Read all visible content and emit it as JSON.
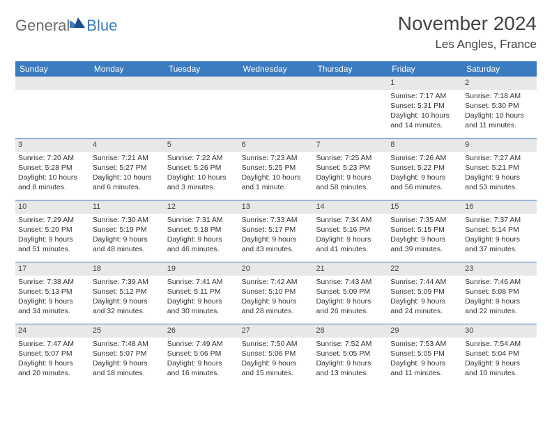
{
  "brand": {
    "part1": "General",
    "part2": "Blue"
  },
  "title": "November 2024",
  "location": "Les Angles, France",
  "weekday_header_bg": "#3b7bbf",
  "weekday_header_fg": "#ffffff",
  "daynum_bg": "#e8e8e8",
  "border_color": "#3b7bbf",
  "text_color": "#333333",
  "weekdays": [
    "Sunday",
    "Monday",
    "Tuesday",
    "Wednesday",
    "Thursday",
    "Friday",
    "Saturday"
  ],
  "weeks": [
    [
      null,
      null,
      null,
      null,
      null,
      {
        "n": "1",
        "sr": "Sunrise: 7:17 AM",
        "ss": "Sunset: 5:31 PM",
        "dl1": "Daylight: 10 hours",
        "dl2": "and 14 minutes."
      },
      {
        "n": "2",
        "sr": "Sunrise: 7:18 AM",
        "ss": "Sunset: 5:30 PM",
        "dl1": "Daylight: 10 hours",
        "dl2": "and 11 minutes."
      }
    ],
    [
      {
        "n": "3",
        "sr": "Sunrise: 7:20 AM",
        "ss": "Sunset: 5:28 PM",
        "dl1": "Daylight: 10 hours",
        "dl2": "and 8 minutes."
      },
      {
        "n": "4",
        "sr": "Sunrise: 7:21 AM",
        "ss": "Sunset: 5:27 PM",
        "dl1": "Daylight: 10 hours",
        "dl2": "and 6 minutes."
      },
      {
        "n": "5",
        "sr": "Sunrise: 7:22 AM",
        "ss": "Sunset: 5:26 PM",
        "dl1": "Daylight: 10 hours",
        "dl2": "and 3 minutes."
      },
      {
        "n": "6",
        "sr": "Sunrise: 7:23 AM",
        "ss": "Sunset: 5:25 PM",
        "dl1": "Daylight: 10 hours",
        "dl2": "and 1 minute."
      },
      {
        "n": "7",
        "sr": "Sunrise: 7:25 AM",
        "ss": "Sunset: 5:23 PM",
        "dl1": "Daylight: 9 hours",
        "dl2": "and 58 minutes."
      },
      {
        "n": "8",
        "sr": "Sunrise: 7:26 AM",
        "ss": "Sunset: 5:22 PM",
        "dl1": "Daylight: 9 hours",
        "dl2": "and 56 minutes."
      },
      {
        "n": "9",
        "sr": "Sunrise: 7:27 AM",
        "ss": "Sunset: 5:21 PM",
        "dl1": "Daylight: 9 hours",
        "dl2": "and 53 minutes."
      }
    ],
    [
      {
        "n": "10",
        "sr": "Sunrise: 7:29 AM",
        "ss": "Sunset: 5:20 PM",
        "dl1": "Daylight: 9 hours",
        "dl2": "and 51 minutes."
      },
      {
        "n": "11",
        "sr": "Sunrise: 7:30 AM",
        "ss": "Sunset: 5:19 PM",
        "dl1": "Daylight: 9 hours",
        "dl2": "and 48 minutes."
      },
      {
        "n": "12",
        "sr": "Sunrise: 7:31 AM",
        "ss": "Sunset: 5:18 PM",
        "dl1": "Daylight: 9 hours",
        "dl2": "and 46 minutes."
      },
      {
        "n": "13",
        "sr": "Sunrise: 7:33 AM",
        "ss": "Sunset: 5:17 PM",
        "dl1": "Daylight: 9 hours",
        "dl2": "and 43 minutes."
      },
      {
        "n": "14",
        "sr": "Sunrise: 7:34 AM",
        "ss": "Sunset: 5:16 PM",
        "dl1": "Daylight: 9 hours",
        "dl2": "and 41 minutes."
      },
      {
        "n": "15",
        "sr": "Sunrise: 7:35 AM",
        "ss": "Sunset: 5:15 PM",
        "dl1": "Daylight: 9 hours",
        "dl2": "and 39 minutes."
      },
      {
        "n": "16",
        "sr": "Sunrise: 7:37 AM",
        "ss": "Sunset: 5:14 PM",
        "dl1": "Daylight: 9 hours",
        "dl2": "and 37 minutes."
      }
    ],
    [
      {
        "n": "17",
        "sr": "Sunrise: 7:38 AM",
        "ss": "Sunset: 5:13 PM",
        "dl1": "Daylight: 9 hours",
        "dl2": "and 34 minutes."
      },
      {
        "n": "18",
        "sr": "Sunrise: 7:39 AM",
        "ss": "Sunset: 5:12 PM",
        "dl1": "Daylight: 9 hours",
        "dl2": "and 32 minutes."
      },
      {
        "n": "19",
        "sr": "Sunrise: 7:41 AM",
        "ss": "Sunset: 5:11 PM",
        "dl1": "Daylight: 9 hours",
        "dl2": "and 30 minutes."
      },
      {
        "n": "20",
        "sr": "Sunrise: 7:42 AM",
        "ss": "Sunset: 5:10 PM",
        "dl1": "Daylight: 9 hours",
        "dl2": "and 28 minutes."
      },
      {
        "n": "21",
        "sr": "Sunrise: 7:43 AM",
        "ss": "Sunset: 5:09 PM",
        "dl1": "Daylight: 9 hours",
        "dl2": "and 26 minutes."
      },
      {
        "n": "22",
        "sr": "Sunrise: 7:44 AM",
        "ss": "Sunset: 5:09 PM",
        "dl1": "Daylight: 9 hours",
        "dl2": "and 24 minutes."
      },
      {
        "n": "23",
        "sr": "Sunrise: 7:46 AM",
        "ss": "Sunset: 5:08 PM",
        "dl1": "Daylight: 9 hours",
        "dl2": "and 22 minutes."
      }
    ],
    [
      {
        "n": "24",
        "sr": "Sunrise: 7:47 AM",
        "ss": "Sunset: 5:07 PM",
        "dl1": "Daylight: 9 hours",
        "dl2": "and 20 minutes."
      },
      {
        "n": "25",
        "sr": "Sunrise: 7:48 AM",
        "ss": "Sunset: 5:07 PM",
        "dl1": "Daylight: 9 hours",
        "dl2": "and 18 minutes."
      },
      {
        "n": "26",
        "sr": "Sunrise: 7:49 AM",
        "ss": "Sunset: 5:06 PM",
        "dl1": "Daylight: 9 hours",
        "dl2": "and 16 minutes."
      },
      {
        "n": "27",
        "sr": "Sunrise: 7:50 AM",
        "ss": "Sunset: 5:06 PM",
        "dl1": "Daylight: 9 hours",
        "dl2": "and 15 minutes."
      },
      {
        "n": "28",
        "sr": "Sunrise: 7:52 AM",
        "ss": "Sunset: 5:05 PM",
        "dl1": "Daylight: 9 hours",
        "dl2": "and 13 minutes."
      },
      {
        "n": "29",
        "sr": "Sunrise: 7:53 AM",
        "ss": "Sunset: 5:05 PM",
        "dl1": "Daylight: 9 hours",
        "dl2": "and 11 minutes."
      },
      {
        "n": "30",
        "sr": "Sunrise: 7:54 AM",
        "ss": "Sunset: 5:04 PM",
        "dl1": "Daylight: 9 hours",
        "dl2": "and 10 minutes."
      }
    ]
  ]
}
